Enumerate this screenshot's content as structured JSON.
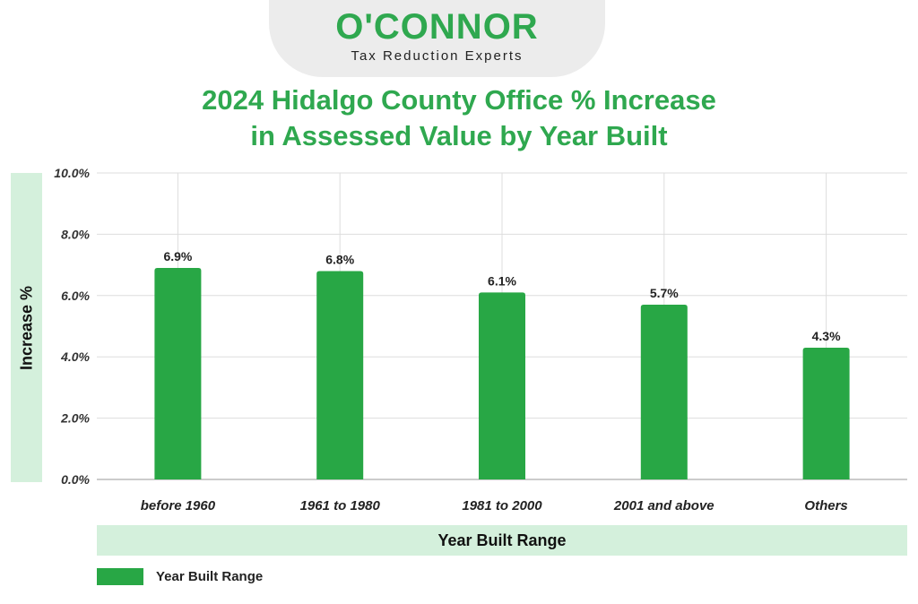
{
  "logo": {
    "wordmark": "O'CONNOR",
    "tagline": "Tax Reduction Experts"
  },
  "colors": {
    "brand_green": "#2fa84f",
    "bar": "#28a745",
    "band": "#d4f0dc"
  },
  "chart_data": {
    "type": "bar",
    "title_line1": "2024 Hidalgo County Office % Increase",
    "title_line2": "in Assessed Value by Year Built",
    "xlabel": "Year Built Range",
    "ylabel": "Increase %",
    "categories": [
      "before 1960",
      "1961 to 1980",
      "1981 to 2000",
      "2001 and above",
      "Others"
    ],
    "series": [
      {
        "name": "Year Built Range",
        "values": [
          6.9,
          6.8,
          6.1,
          5.7,
          4.3
        ]
      }
    ],
    "data_labels": [
      "6.9%",
      "6.8%",
      "6.1%",
      "5.7%",
      "4.3%"
    ],
    "ylim": [
      0,
      10
    ],
    "yticks": [
      0,
      2,
      4,
      6,
      8,
      10
    ],
    "ytick_labels": [
      "0.0%",
      "2.0%",
      "4.0%",
      "6.0%",
      "8.0%",
      "10.0%"
    ],
    "grid": true,
    "legend": "bottom-left"
  }
}
